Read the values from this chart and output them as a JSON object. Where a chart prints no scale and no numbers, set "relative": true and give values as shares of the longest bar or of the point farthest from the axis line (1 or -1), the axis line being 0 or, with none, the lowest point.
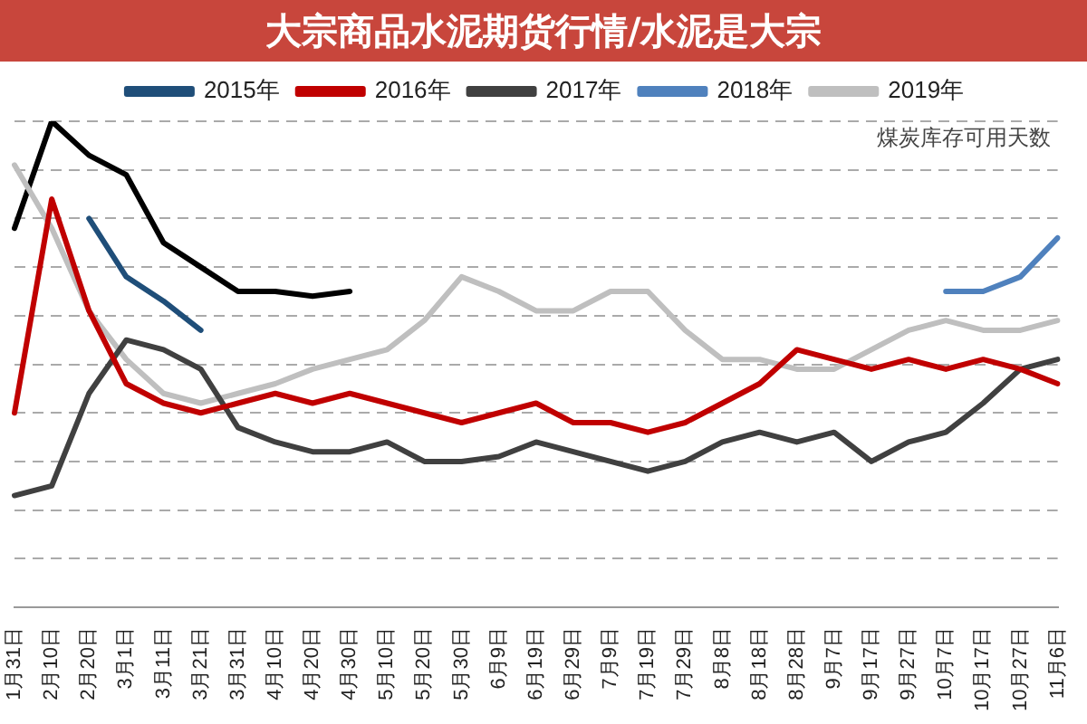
{
  "chart_data": {
    "type": "line",
    "title": "大宗商品水泥期货行情/水泥是大宗",
    "relative": true,
    "grid": "y",
    "legend": "top",
    "marker": "none",
    "line_style": "solid",
    "annotations": [
      "煤炭库存可用天数"
    ],
    "categories": [
      "1月31日",
      "2月10日",
      "2月20日",
      "3月1日",
      "3月11日",
      "3月21日",
      "3月31日",
      "4月10日",
      "4月20日",
      "4月30日",
      "5月10日",
      "5月20日",
      "5月30日",
      "6月9日",
      "6月19日",
      "6月29日",
      "7月9日",
      "7月19日",
      "7月29日",
      "8月8日",
      "8月18日",
      "8月28日",
      "9月7日",
      "9月17日",
      "9月27日",
      "10月7日",
      "10月17日",
      "10月27日",
      "11月6日"
    ],
    "series": [
      {
        "name": "2015年",
        "color": "#1f4e79",
        "values": [
          null,
          null,
          0.8,
          0.68,
          0.63,
          0.57,
          null,
          null,
          null,
          null,
          null,
          null,
          null,
          null,
          null,
          null,
          null,
          null,
          null,
          null,
          null,
          null,
          null,
          null,
          null,
          null,
          null,
          null,
          null
        ]
      },
      {
        "name": "2016年",
        "color": "#c00000",
        "values": [
          0.4,
          0.84,
          0.61,
          0.46,
          0.42,
          0.4,
          0.42,
          0.44,
          0.42,
          0.44,
          0.42,
          0.4,
          0.38,
          0.4,
          0.42,
          0.38,
          0.38,
          0.36,
          0.38,
          0.42,
          0.46,
          0.53,
          0.51,
          0.49,
          0.51,
          0.49,
          0.51,
          0.49,
          0.46
        ]
      },
      {
        "name": "2017年",
        "color": "#404040",
        "values": [
          0.23,
          0.25,
          0.44,
          0.55,
          0.53,
          0.49,
          0.37,
          0.34,
          0.32,
          0.32,
          0.34,
          0.3,
          0.3,
          0.31,
          0.34,
          0.32,
          0.3,
          0.28,
          0.3,
          0.34,
          0.36,
          0.34,
          0.36,
          0.3,
          0.34,
          0.36,
          0.42,
          0.49,
          0.51
        ]
      },
      {
        "name": "2018年",
        "color": "#4f81bd",
        "values": [
          null,
          null,
          null,
          null,
          null,
          null,
          null,
          null,
          null,
          null,
          null,
          null,
          null,
          null,
          null,
          null,
          null,
          null,
          null,
          null,
          null,
          null,
          null,
          null,
          null,
          0.65,
          0.65,
          0.68,
          0.76
        ]
      },
      {
        "name": "2019年",
        "color": "#bfbfbf",
        "values": [
          0.91,
          0.78,
          0.61,
          0.51,
          0.44,
          0.42,
          0.44,
          0.46,
          0.49,
          0.51,
          0.53,
          0.59,
          0.68,
          0.65,
          0.61,
          0.61,
          0.65,
          0.65,
          0.57,
          0.51,
          0.51,
          0.49,
          0.49,
          0.53,
          0.57,
          0.59,
          0.57,
          0.57,
          0.59
        ]
      },
      {
        "color": "#000000",
        "values": [
          0.78,
          1,
          0.93,
          0.89,
          0.75,
          0.7,
          0.65,
          0.65,
          0.64,
          0.65,
          null,
          null,
          null,
          null,
          null,
          null,
          null,
          null,
          null,
          null,
          null,
          null,
          null,
          null,
          null,
          null,
          null,
          null,
          null
        ]
      }
    ]
  }
}
